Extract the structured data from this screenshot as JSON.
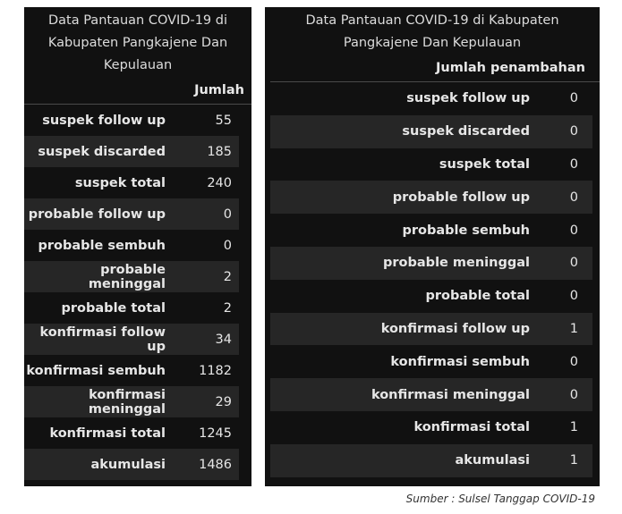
{
  "left_table": {
    "title": "Data Pantauan COVID-19 di Kabupaten Pangkajene Dan Kepulauan",
    "column_header": "Jumlah",
    "rows": [
      {
        "label": "suspek follow up",
        "value": "55"
      },
      {
        "label": "suspek discarded",
        "value": "185"
      },
      {
        "label": "suspek total",
        "value": "240"
      },
      {
        "label": "probable follow up",
        "value": "0"
      },
      {
        "label": "probable sembuh",
        "value": "0"
      },
      {
        "label": "probable meninggal",
        "value": "2"
      },
      {
        "label": "probable total",
        "value": "2"
      },
      {
        "label": "konfirmasi follow up",
        "value": "34"
      },
      {
        "label": "konfirmasi sembuh",
        "value": "1182"
      },
      {
        "label": "konfirmasi meninggal",
        "value": "29"
      },
      {
        "label": "konfirmasi total",
        "value": "1245"
      },
      {
        "label": "akumulasi",
        "value": "1486"
      }
    ]
  },
  "right_table": {
    "title": "Data Pantauan COVID-19 di Kabupaten Pangkajene Dan Kepulauan",
    "column_header": "Jumlah penambahan",
    "rows": [
      {
        "label": "suspek follow up",
        "value": "0"
      },
      {
        "label": "suspek discarded",
        "value": "0"
      },
      {
        "label": "suspek total",
        "value": "0"
      },
      {
        "label": "probable follow up",
        "value": "0"
      },
      {
        "label": "probable sembuh",
        "value": "0"
      },
      {
        "label": "probable meninggal",
        "value": "0"
      },
      {
        "label": "probable total",
        "value": "0"
      },
      {
        "label": "konfirmasi follow up",
        "value": "1"
      },
      {
        "label": "konfirmasi sembuh",
        "value": "0"
      },
      {
        "label": "konfirmasi meninggal",
        "value": "0"
      },
      {
        "label": "konfirmasi total",
        "value": "1"
      },
      {
        "label": "akumulasi",
        "value": "1"
      }
    ]
  },
  "source": "Sumber : Sulsel Tanggap COVID-19"
}
